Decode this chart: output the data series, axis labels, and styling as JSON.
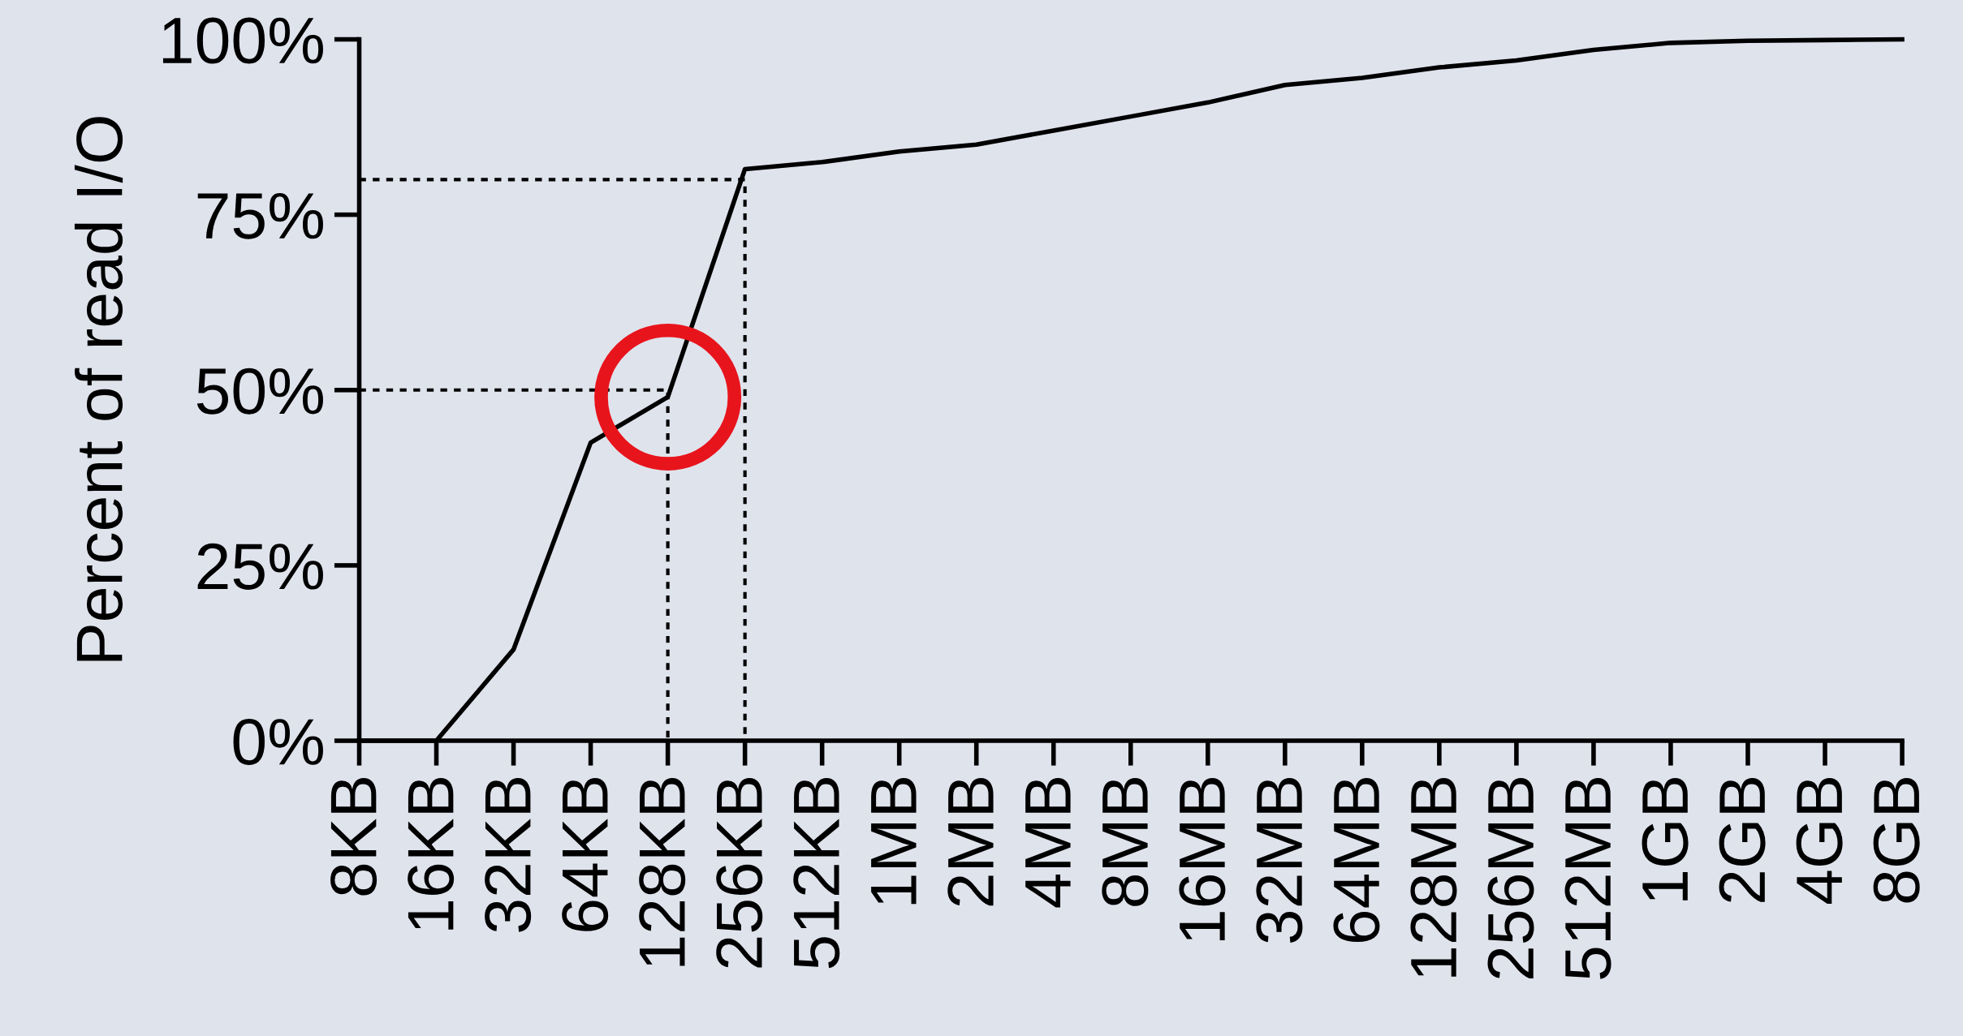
{
  "chart_data": {
    "type": "line",
    "ylabel": "Percent of read I/O",
    "categories": [
      "8KB",
      "16KB",
      "32KB",
      "64KB",
      "128KB",
      "256KB",
      "512KB",
      "1MB",
      "2MB",
      "4MB",
      "8MB",
      "16MB",
      "32MB",
      "64MB",
      "128MB",
      "256MB",
      "512MB",
      "1GB",
      "2GB",
      "4GB",
      "8GB"
    ],
    "series": [
      {
        "color": "#000000",
        "values": [
          0,
          0,
          13,
          42.5,
          49,
          81.5,
          82.5,
          84,
          85,
          87,
          89,
          91,
          93.5,
          94.5,
          96,
          97,
          98.5,
          99.5,
          99.8,
          99.9,
          100
        ]
      },
      {
        "type": "line",
        "line_style": "dashed",
        "color": "#000000",
        "x": [
          "8KB",
          "128KB",
          "128KB"
        ],
        "values": [
          50,
          50,
          0
        ]
      },
      {
        "type": "line",
        "line_style": "dashed",
        "color": "#000000",
        "x": [
          "8KB",
          "256KB",
          "256KB"
        ],
        "values": [
          80,
          80,
          0
        ]
      },
      {
        "type": "scatter",
        "marker": "circle",
        "color": "#e8141c",
        "x": [
          "128KB"
        ],
        "values": [
          49
        ]
      }
    ],
    "ylim": [
      0,
      100
    ],
    "yticks": [
      {
        "value": 0,
        "label": "0%"
      },
      {
        "value": 25,
        "label": "25%"
      },
      {
        "value": 50,
        "label": "50%"
      },
      {
        "value": 75,
        "label": "75%"
      },
      {
        "value": 100,
        "label": "100%"
      }
    ],
    "grid": false,
    "legend": false
  }
}
